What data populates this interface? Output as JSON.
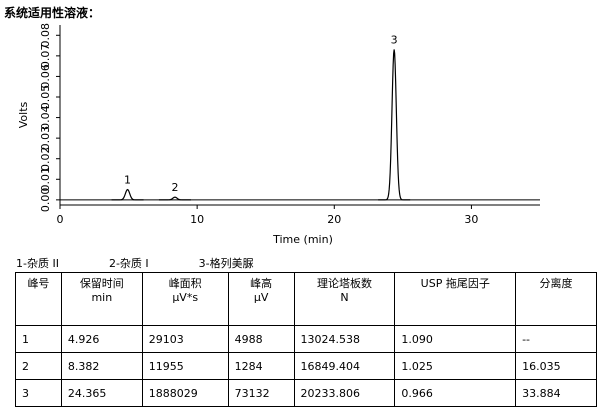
{
  "header": {
    "title": "系统适用性溶液："
  },
  "chart_data": {
    "type": "chromatogram",
    "xlabel": "Time (min)",
    "ylabel": "Volts",
    "x": [
      4.926,
      8.382,
      24.365
    ],
    "values": [
      0.005,
      0.0013,
      0.0731
    ],
    "peak_labels": [
      "1",
      "2",
      "3"
    ],
    "color": "#000000",
    "xlim": [
      0,
      35
    ],
    "xticks": [
      0,
      10,
      20,
      30
    ],
    "ylim": [
      -0.0025,
      0.085
    ],
    "yticks": [
      {
        "value": 0,
        "label": "0.00"
      },
      {
        "value": 0.01,
        "label": "0.01"
      },
      {
        "value": 0.02,
        "label": "0.02"
      },
      {
        "value": 0.03,
        "label": "0.03"
      },
      {
        "value": 0.04,
        "label": "0.04"
      },
      {
        "value": 0.05,
        "label": "0.05"
      },
      {
        "value": 0.06,
        "label": "0.06"
      },
      {
        "value": 0.07,
        "label": "0.07"
      },
      {
        "value": 0.08,
        "label": "0.08"
      }
    ]
  },
  "legend": [
    "1-杂质 II",
    "2-杂质 I",
    "3-格列美脲"
  ],
  "table": {
    "header": [
      [
        "峰号"
      ],
      [
        "保留时间",
        "min"
      ],
      [
        "峰面积",
        "µV*s"
      ],
      [
        "峰高",
        "µV"
      ],
      [
        "理论塔板数",
        "N"
      ],
      [
        "USP 拖尾因子"
      ],
      [
        "分离度"
      ]
    ],
    "rows": [
      [
        "1",
        "4.926",
        "29103",
        "4988",
        "13024.538",
        "1.090",
        "--"
      ],
      [
        "2",
        "8.382",
        "11955",
        "1284",
        "16849.404",
        "1.025",
        "16.035"
      ],
      [
        "3",
        "24.365",
        "1888029",
        "73132",
        "20233.806",
        "0.966",
        "33.884"
      ]
    ]
  }
}
